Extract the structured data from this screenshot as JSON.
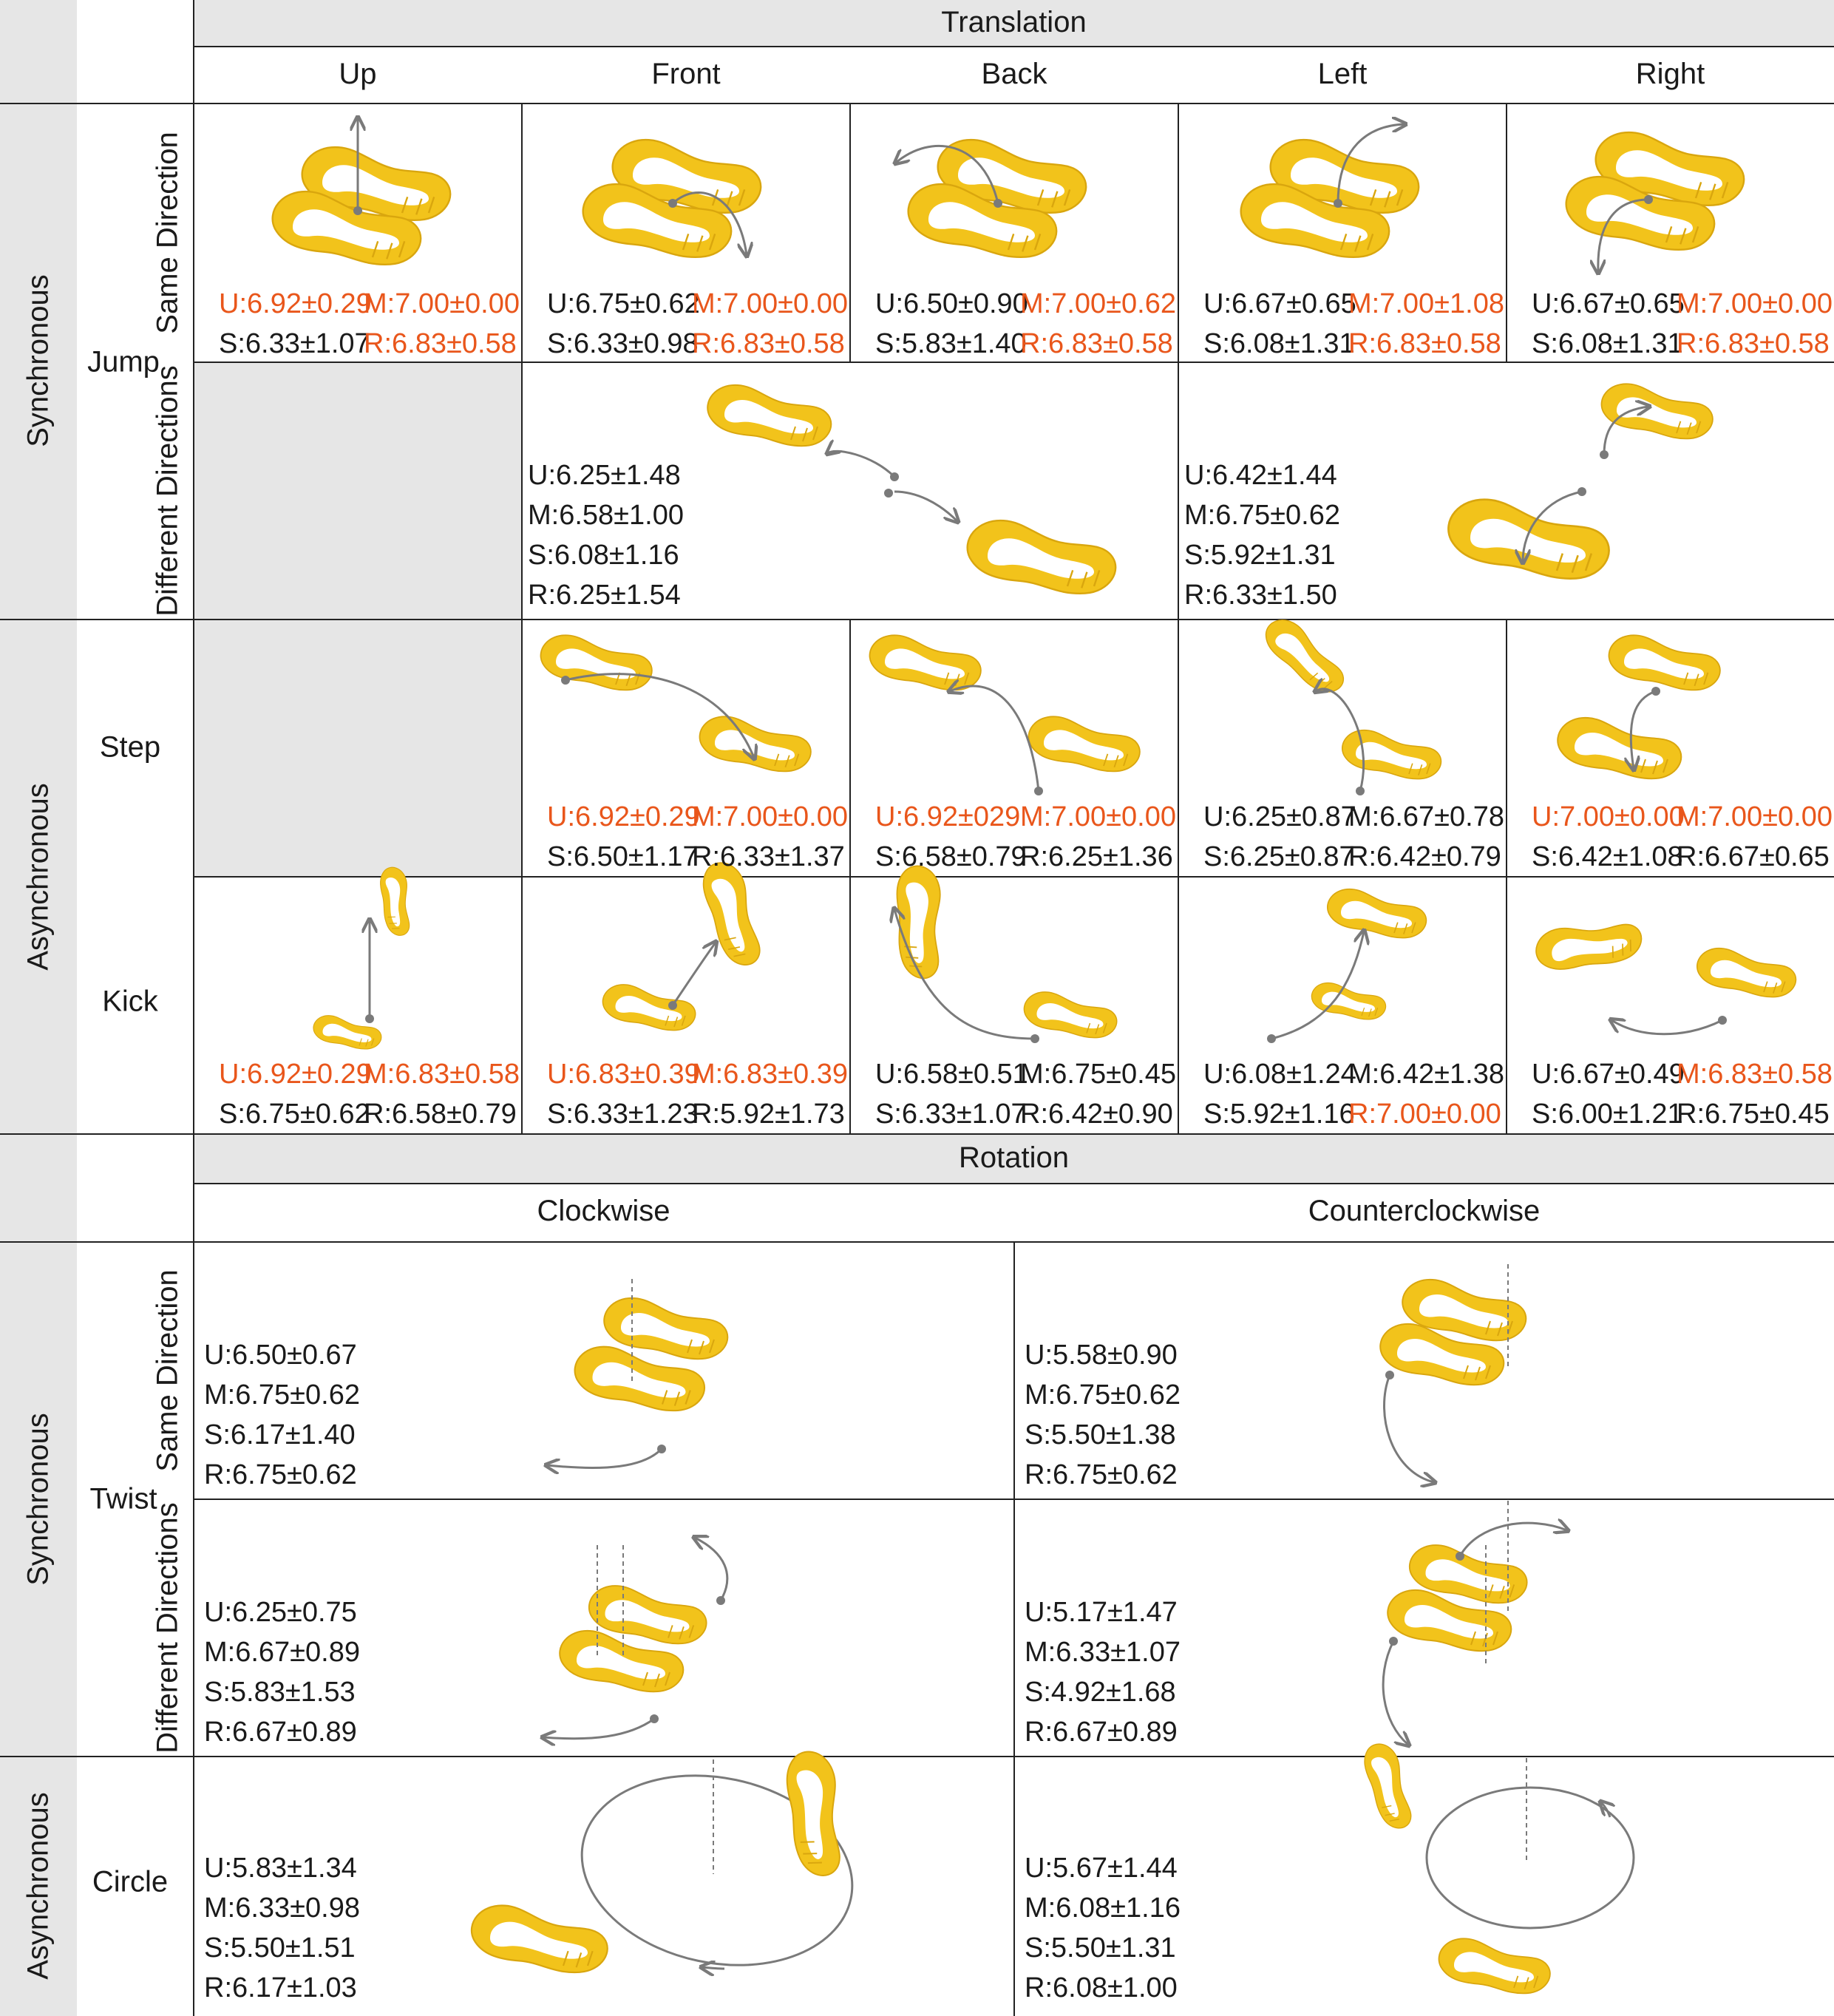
{
  "translation": {
    "title": "Translation",
    "columns": [
      "Up",
      "Front",
      "Back",
      "Left",
      "Right"
    ]
  },
  "rotation": {
    "title": "Rotation",
    "columns": [
      "Clockwise",
      "Counterclockwise"
    ]
  },
  "groups": {
    "synchronous": "Synchronous",
    "asynchronous": "Asynchronous"
  },
  "gestures": {
    "jump": "Jump",
    "step": "Step",
    "kick": "Kick",
    "twist": "Twist",
    "circle": "Circle"
  },
  "subgroups": {
    "same": "Same Direction",
    "different": "Different Directions"
  },
  "colors": {
    "highlight": "#e9561b",
    "shoe": "#f2c31b",
    "arrow": "#7a7a7a",
    "header_bg": "#e6e6e6"
  },
  "scores": {
    "jump_same": [
      {
        "c": [
          {
            "t": "U:6.92±0.29",
            "h": true
          },
          {
            "t": "M:7.00±0.00",
            "h": true
          },
          {
            "t": "S:6.33±1.07",
            "h": false
          },
          {
            "t": "R:6.83±0.58",
            "h": true
          }
        ]
      },
      {
        "c": [
          {
            "t": "U:6.75±0.62",
            "h": false
          },
          {
            "t": "M:7.00±0.00",
            "h": true
          },
          {
            "t": "S:6.33±0.98",
            "h": false
          },
          {
            "t": "R:6.83±0.58",
            "h": true
          }
        ]
      },
      {
        "c": [
          {
            "t": "U:6.50±0.90",
            "h": false
          },
          {
            "t": "M:7.00±0.62",
            "h": true
          },
          {
            "t": "S:5.83±1.40",
            "h": false
          },
          {
            "t": "R:6.83±0.58",
            "h": true
          }
        ]
      },
      {
        "c": [
          {
            "t": "U:6.67±0.65",
            "h": false
          },
          {
            "t": "M:7.00±1.08",
            "h": true
          },
          {
            "t": "S:6.08±1.31",
            "h": false
          },
          {
            "t": "R:6.83±0.58",
            "h": true
          }
        ]
      },
      {
        "c": [
          {
            "t": "U:6.67±0.65",
            "h": false
          },
          {
            "t": "M:7.00±0.00",
            "h": true
          },
          {
            "t": "S:6.08±1.31",
            "h": false
          },
          {
            "t": "R:6.83±0.58",
            "h": true
          }
        ]
      }
    ],
    "jump_diff": [
      {
        "lines": [
          "U:6.25±1.48",
          "M:6.58±1.00",
          "S:6.08±1.16",
          "R:6.25±1.54"
        ]
      },
      {
        "lines": [
          "U:6.42±1.44",
          "M:6.75±0.62",
          "S:5.92±1.31",
          "R:6.33±1.50"
        ]
      }
    ],
    "step": [
      {
        "c": [
          {
            "t": "U:6.92±0.29",
            "h": true
          },
          {
            "t": "M:7.00±0.00",
            "h": true
          },
          {
            "t": "S:6.50±1.17",
            "h": false
          },
          {
            "t": "R:6.33±1.37",
            "h": false
          }
        ]
      },
      {
        "c": [
          {
            "t": "U:6.92±029",
            "h": true
          },
          {
            "t": "M:7.00±0.00",
            "h": true
          },
          {
            "t": "S:6.58±0.79",
            "h": false
          },
          {
            "t": "R:6.25±1.36",
            "h": false
          }
        ]
      },
      {
        "c": [
          {
            "t": "U:6.25±0.87",
            "h": false
          },
          {
            "t": "M:6.67±0.78",
            "h": false
          },
          {
            "t": "S:6.25±0.87",
            "h": false
          },
          {
            "t": "R:6.42±0.79",
            "h": false
          }
        ]
      },
      {
        "c": [
          {
            "t": "U:7.00±0.00",
            "h": true
          },
          {
            "t": "M:7.00±0.00",
            "h": true
          },
          {
            "t": "S:6.42±1.08",
            "h": false
          },
          {
            "t": "R:6.67±0.65",
            "h": false
          }
        ]
      }
    ],
    "kick": [
      {
        "c": [
          {
            "t": "U:6.92±0.29",
            "h": true
          },
          {
            "t": "M:6.83±0.58",
            "h": true
          },
          {
            "t": "S:6.75±0.62",
            "h": false
          },
          {
            "t": "R:6.58±0.79",
            "h": false
          }
        ]
      },
      {
        "c": [
          {
            "t": "U:6.83±0.39",
            "h": true
          },
          {
            "t": "M:6.83±0.39",
            "h": true
          },
          {
            "t": "S:6.33±1.23",
            "h": false
          },
          {
            "t": "R:5.92±1.73",
            "h": false
          }
        ]
      },
      {
        "c": [
          {
            "t": "U:6.58±0.51",
            "h": false
          },
          {
            "t": "M:6.75±0.45",
            "h": false
          },
          {
            "t": "S:6.33±1.07",
            "h": false
          },
          {
            "t": "R:6.42±0.90",
            "h": false
          }
        ]
      },
      {
        "c": [
          {
            "t": "U:6.08±1.24",
            "h": false
          },
          {
            "t": "M:6.42±1.38",
            "h": false
          },
          {
            "t": "S:5.92±1.16",
            "h": false
          },
          {
            "t": "R:7.00±0.00",
            "h": true
          }
        ]
      },
      {
        "c": [
          {
            "t": "U:6.67±0.49",
            "h": false
          },
          {
            "t": "M:6.83±0.58",
            "h": true
          },
          {
            "t": "S:6.00±1.21",
            "h": false
          },
          {
            "t": "R:6.75±0.45",
            "h": false
          }
        ]
      }
    ],
    "twist_same": [
      {
        "lines": [
          "U:6.50±0.67",
          "M:6.75±0.62",
          "S:6.17±1.40",
          "R:6.75±0.62"
        ]
      },
      {
        "lines": [
          "U:5.58±0.90",
          "M:6.75±0.62",
          "S:5.50±1.38",
          "R:6.75±0.62"
        ]
      }
    ],
    "twist_diff": [
      {
        "lines": [
          "U:6.25±0.75",
          "M:6.67±0.89",
          "S:5.83±1.53",
          "R:6.67±0.89"
        ]
      },
      {
        "lines": [
          "U:5.17±1.47",
          "M:6.33±1.07",
          "S:4.92±1.68",
          "R:6.67±0.89"
        ]
      }
    ],
    "circle": [
      {
        "lines": [
          "U:5.83±1.34",
          "M:6.33±0.98",
          "S:5.50±1.51",
          "R:6.17±1.03"
        ]
      },
      {
        "lines": [
          "U:5.67±1.44",
          "M:6.08±1.16",
          "S:5.50±1.31",
          "R:6.08±1.00"
        ]
      }
    ]
  }
}
